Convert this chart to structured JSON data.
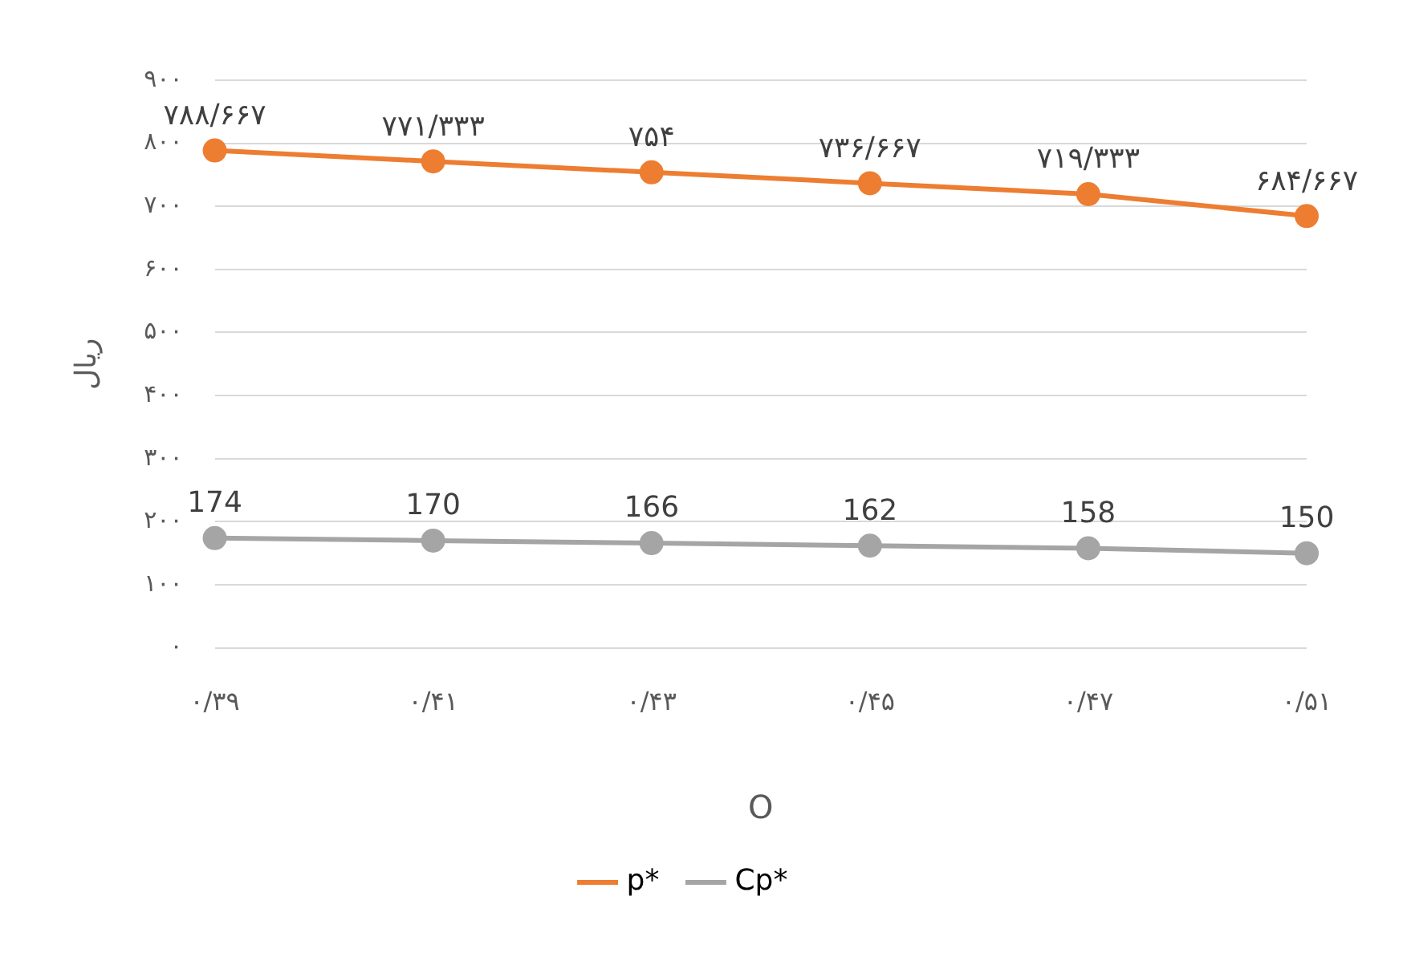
{
  "chart_data": {
    "type": "line",
    "xlabel": "O",
    "ylabel": "ریال",
    "categories": [
      "۰/۳۹",
      "۰/۴۱",
      "۰/۴۳",
      "۰/۴۵",
      "۰/۴۷",
      "۰/۵۱"
    ],
    "series": [
      {
        "name": "p*",
        "color": "#ed7d31",
        "values": [
          788.667,
          771.333,
          754,
          736.667,
          719.333,
          684.667
        ],
        "value_labels": [
          "۷۸۸/۶۶۷",
          "۷۷۱/۳۳۳",
          "۷۵۴",
          "۷۳۶/۶۶۷",
          "۷۱۹/۳۳۳",
          "۶۸۴/۶۶۷"
        ]
      },
      {
        "name": "Cp*",
        "color": "#a5a5a5",
        "values": [
          174,
          170,
          166,
          162,
          158,
          150
        ],
        "value_labels": [
          "174",
          "170",
          "166",
          "162",
          "158",
          "150"
        ]
      }
    ],
    "ylim": [
      0,
      900
    ],
    "yticks": [
      {
        "value": 0,
        "label": "۰"
      },
      {
        "value": 100,
        "label": "۱۰۰"
      },
      {
        "value": 200,
        "label": "۲۰۰"
      },
      {
        "value": 300,
        "label": "۳۰۰"
      },
      {
        "value": 400,
        "label": "۴۰۰"
      },
      {
        "value": 500,
        "label": "۵۰۰"
      },
      {
        "value": 600,
        "label": "۶۰۰"
      },
      {
        "value": 700,
        "label": "۷۰۰"
      },
      {
        "value": 800,
        "label": "۸۰۰"
      },
      {
        "value": 900,
        "label": "۹۰۰"
      }
    ],
    "grid": "y",
    "legend": "bottom",
    "marker": "circle",
    "line_style": "solid"
  }
}
